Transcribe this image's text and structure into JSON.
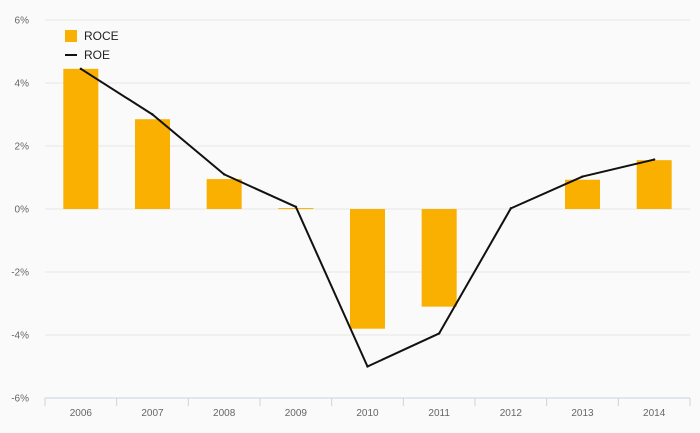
{
  "chart_data": {
    "type": "bar",
    "categories": [
      "2006",
      "2007",
      "2008",
      "2009",
      "2010",
      "2011",
      "2012",
      "2013",
      "2014"
    ],
    "series": [
      {
        "name": "ROCE",
        "kind": "bar",
        "color": "#f9b000",
        "values": [
          4.45,
          2.85,
          0.95,
          0.03,
          -3.8,
          -3.1,
          0.0,
          0.93,
          1.55
        ]
      },
      {
        "name": "ROE",
        "kind": "line",
        "color": "#111111",
        "values": [
          4.45,
          3.0,
          1.1,
          0.07,
          -5.0,
          -3.95,
          0.02,
          1.03,
          1.57
        ]
      }
    ],
    "ylim": [
      -6,
      6
    ],
    "yticks": [
      6,
      4,
      2,
      0,
      -2,
      -4,
      -6
    ],
    "ytick_labels": [
      "6%",
      "4%",
      "2%",
      "0%",
      "-2%",
      "-4%",
      "-6%"
    ],
    "title": "",
    "xlabel": "",
    "ylabel": "",
    "grid": true,
    "legend_position": "top-left"
  }
}
